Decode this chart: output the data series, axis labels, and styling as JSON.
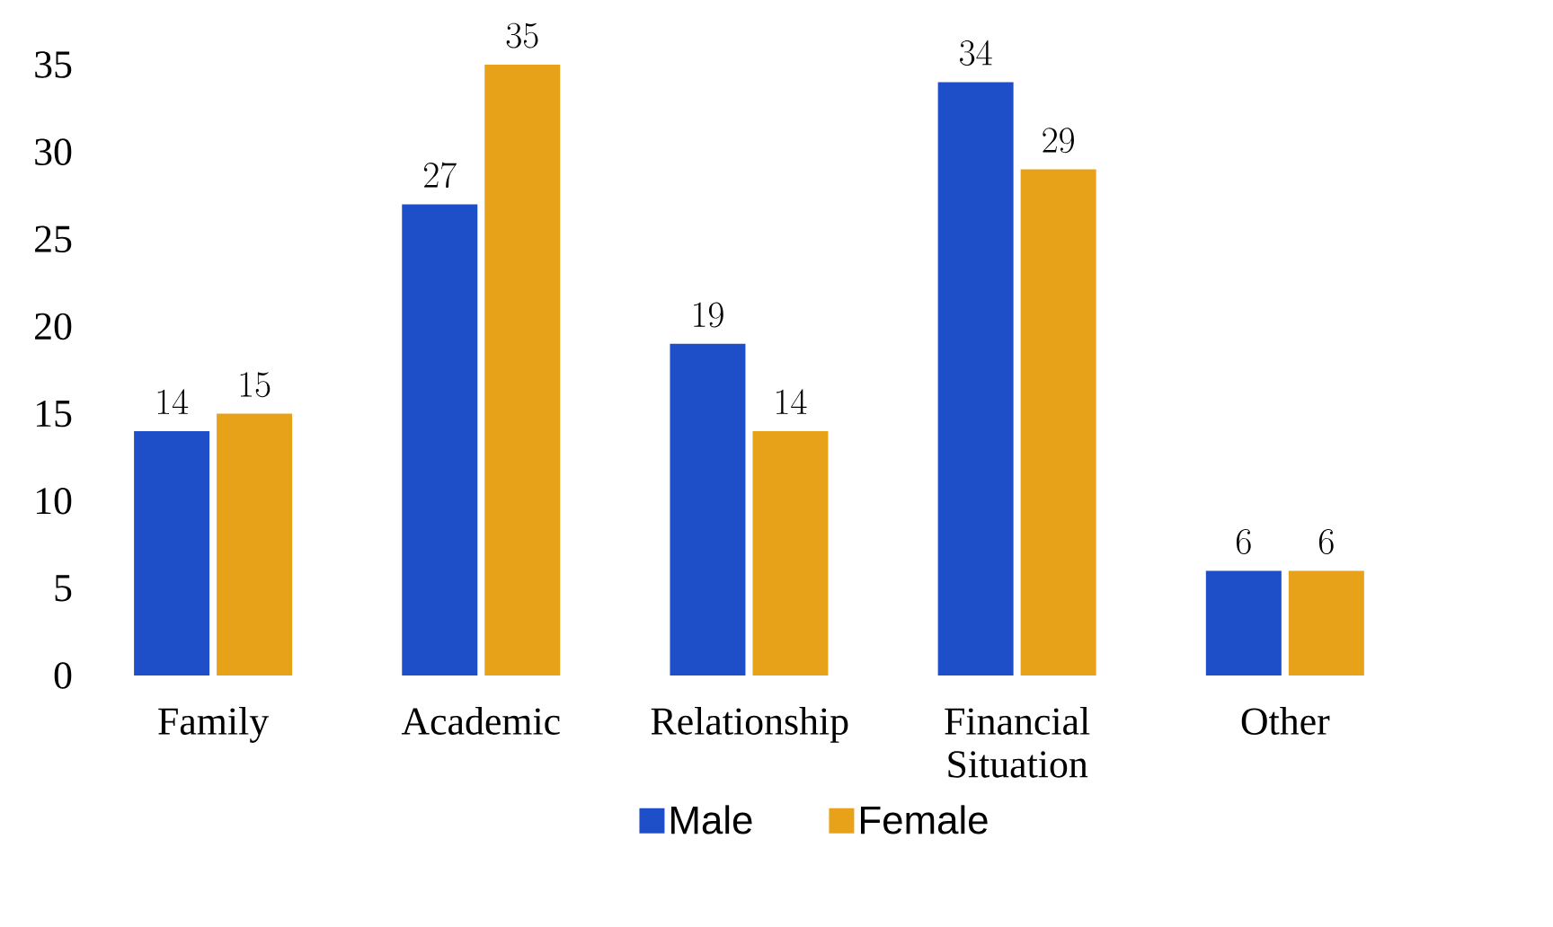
{
  "chart_data": {
    "type": "bar",
    "categories": [
      "Family",
      "Academic",
      "Relationship",
      "Financial Situation",
      "Other"
    ],
    "series": [
      {
        "name": "Male",
        "color": "#1f4fc8",
        "values": [
          14,
          27,
          19,
          34,
          6
        ]
      },
      {
        "name": "Female",
        "color": "#e8a21a",
        "values": [
          15,
          35,
          14,
          29,
          6
        ]
      }
    ],
    "ylim": [
      0,
      35
    ],
    "yticks": [
      0,
      5,
      10,
      15,
      20,
      25,
      30,
      35
    ],
    "data_labels": true,
    "legend": "bottom",
    "grid": false
  }
}
